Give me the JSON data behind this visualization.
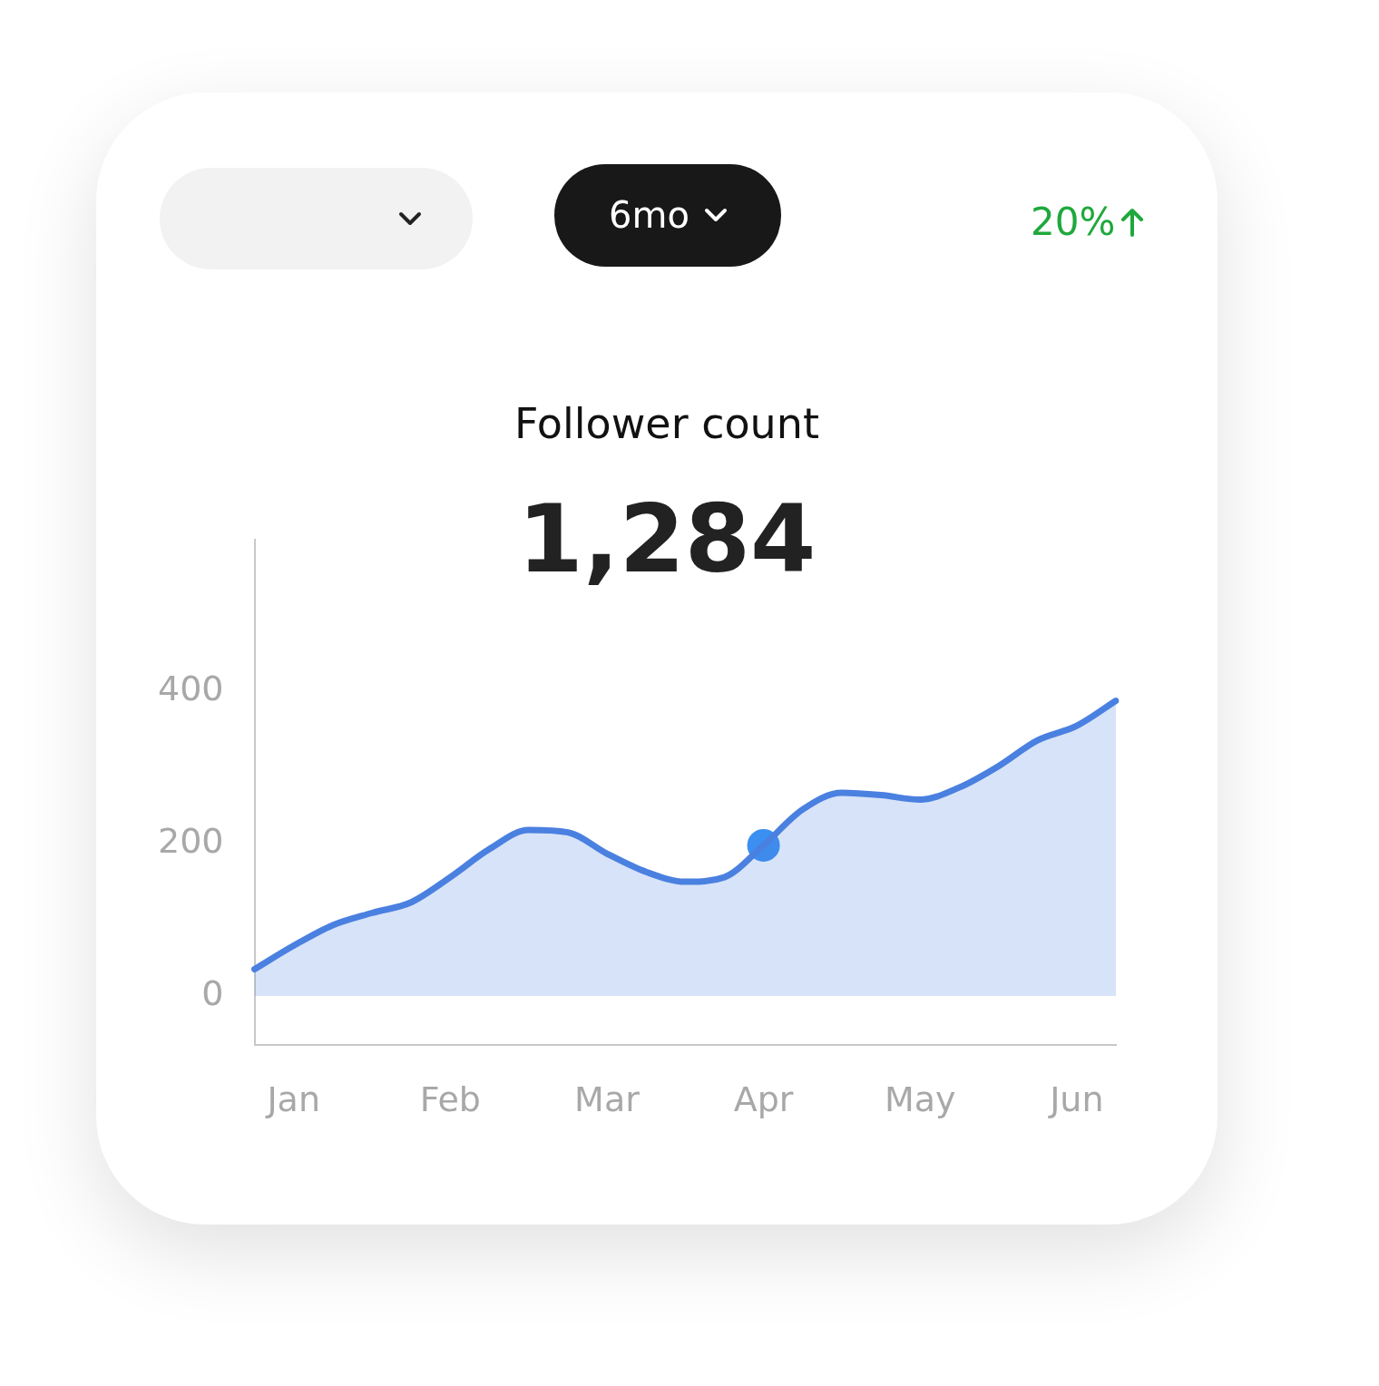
{
  "chart_data": {
    "type": "area",
    "title": "Follower count",
    "subtitle": "1,284",
    "annotations": [
      "20%",
      "6mo"
    ],
    "categories": [
      null,
      "Jan",
      null,
      null,
      null,
      "Feb",
      null,
      null,
      null,
      "Mar",
      null,
      null,
      null,
      "Apr",
      null,
      null,
      null,
      "May",
      null,
      null,
      null,
      "Jun",
      null
    ],
    "series": [
      {
        "type": "area",
        "color": "#4a80e0",
        "values": [
          35,
          66,
          93,
          109,
          123,
          156,
          193,
          218,
          215,
          187,
          163,
          150,
          156,
          198,
          245,
          267,
          264,
          258,
          274,
          302,
          336,
          355,
          388
        ]
      },
      {
        "type": "scatter",
        "color": "#3b8ff0",
        "marker": "circle",
        "values": [
          null,
          null,
          null,
          null,
          null,
          null,
          null,
          null,
          null,
          null,
          null,
          null,
          null,
          198,
          null,
          null,
          null,
          null,
          null,
          null,
          null,
          null,
          null
        ]
      }
    ],
    "ylim": [
      -65,
      600
    ],
    "yticks": [
      0,
      200,
      400
    ],
    "marker": "none",
    "grid": false,
    "legend": false
  }
}
